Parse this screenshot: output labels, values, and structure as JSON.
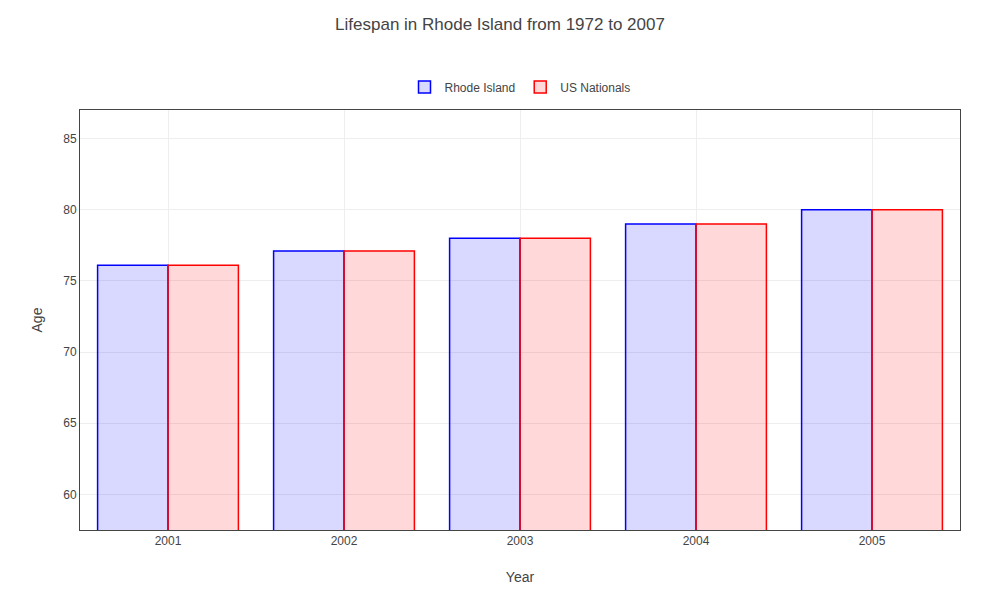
{
  "chart_data": {
    "type": "bar",
    "title": "Lifespan in Rhode Island from 1972 to 2007",
    "xlabel": "Year",
    "ylabel": "Age",
    "categories": [
      "2001",
      "2002",
      "2003",
      "2004",
      "2005"
    ],
    "series": [
      {
        "name": "Rhode Island",
        "color": "#0000ff",
        "values": [
          76.1,
          77.1,
          78.0,
          79.0,
          80.0
        ]
      },
      {
        "name": "US Nationals",
        "color": "#ff0000",
        "values": [
          76.1,
          77.1,
          78.0,
          79.0,
          80.0
        ]
      }
    ],
    "ylim": [
      57.5,
      87
    ],
    "yticks": [
      60,
      65,
      70,
      75,
      80,
      85
    ],
    "grid": true,
    "legend": "top"
  }
}
